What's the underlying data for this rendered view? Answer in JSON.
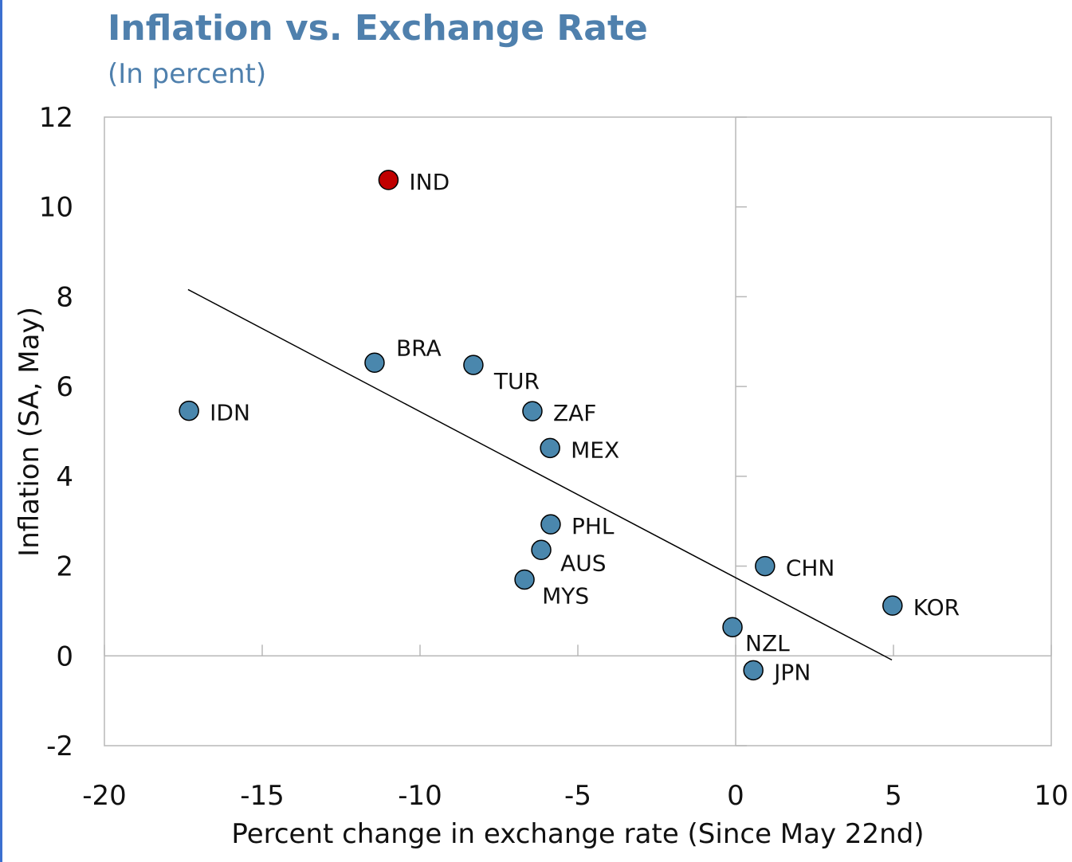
{
  "chart_data": {
    "type": "scatter",
    "title": "Inflation vs. Exchange Rate",
    "subtitle": "(In percent)",
    "x_label": "Percent change in exchange rate (Since May 22nd)",
    "y_label": "Inflation (SA, May)",
    "labels": [
      "IND",
      "BRA",
      "TUR",
      "ZAF",
      "MEX",
      "IDN",
      "PHL",
      "AUS",
      "MYS",
      "CHN",
      "KOR",
      "NZL",
      "JPN"
    ],
    "x": [
      -11.0,
      -11.44,
      -8.31,
      -6.44,
      -5.88,
      -17.32,
      -5.86,
      -6.16,
      -6.69,
      0.93,
      4.97,
      -0.1,
      0.56
    ],
    "y": [
      10.6,
      6.53,
      6.48,
      5.45,
      4.63,
      5.46,
      2.93,
      2.36,
      1.7,
      2.0,
      1.12,
      0.64,
      -0.32
    ],
    "colors": [
      "#c00000",
      "#4a87ad",
      "#4a87ad",
      "#4a87ad",
      "#4a87ad",
      "#4a87ad",
      "#4a87ad",
      "#4a87ad",
      "#4a87ad",
      "#4a87ad",
      "#4a87ad",
      "#4a87ad",
      "#4a87ad"
    ],
    "trendline": {
      "x": [
        -17.35,
        4.95
      ],
      "y": [
        8.16,
        -0.09
      ]
    },
    "xlim": [
      -20,
      10
    ],
    "ylim": [
      -2,
      12
    ],
    "xticks": [
      -20,
      -15,
      -10,
      -5,
      0,
      5,
      10
    ],
    "yticks": [
      -2,
      0,
      2,
      4,
      6,
      8,
      10,
      12
    ]
  }
}
